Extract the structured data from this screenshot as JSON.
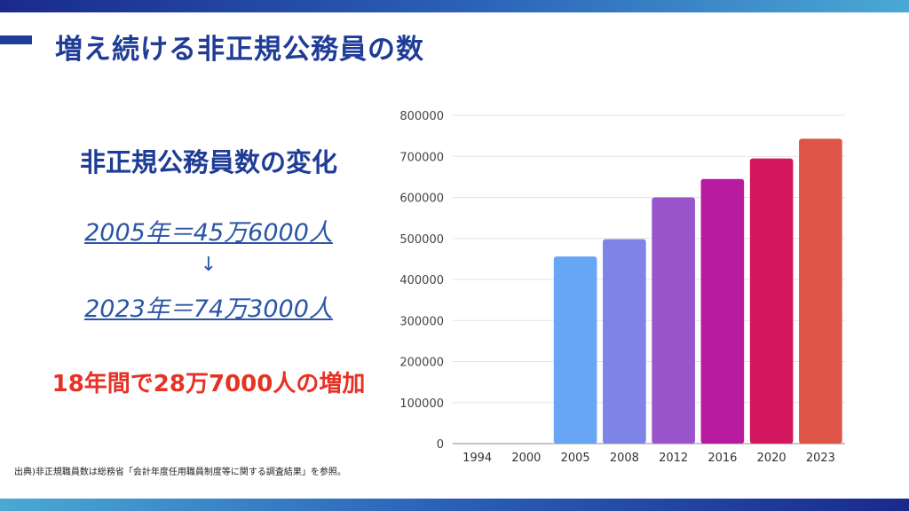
{
  "title": "増え続ける非正規公務員の数",
  "left_panel": {
    "subtitle": "非正規公務員数の変化",
    "stat_2005": "2005年＝45万6000人",
    "arrow": "↓",
    "stat_2023": "2023年＝74万3000人",
    "increase": "18年間で28万7000人の増加"
  },
  "source": "出典)非正規職員数は総務省「会計年度任用職員制度等に関する調査結果」を参照。",
  "colors": {
    "title": "#1f3c96",
    "stat": "#2a55a6",
    "increase": "#e63225"
  },
  "chart_data": {
    "type": "bar",
    "categories": [
      "1994",
      "2000",
      "2005",
      "2008",
      "2012",
      "2016",
      "2020",
      "2023"
    ],
    "values": [
      null,
      null,
      456000,
      498000,
      600000,
      645000,
      695000,
      743000
    ],
    "colors": [
      "#66a6f5",
      "#66a6f5",
      "#66a6f5",
      "#7e83e6",
      "#9a55cc",
      "#b81aa0",
      "#d4175f",
      "#de5447"
    ],
    "ylim": [
      0,
      800000
    ],
    "yticks": [
      "0",
      "100000",
      "200000",
      "300000",
      "400000",
      "500000",
      "600000",
      "700000",
      "800000"
    ],
    "grid": true
  }
}
